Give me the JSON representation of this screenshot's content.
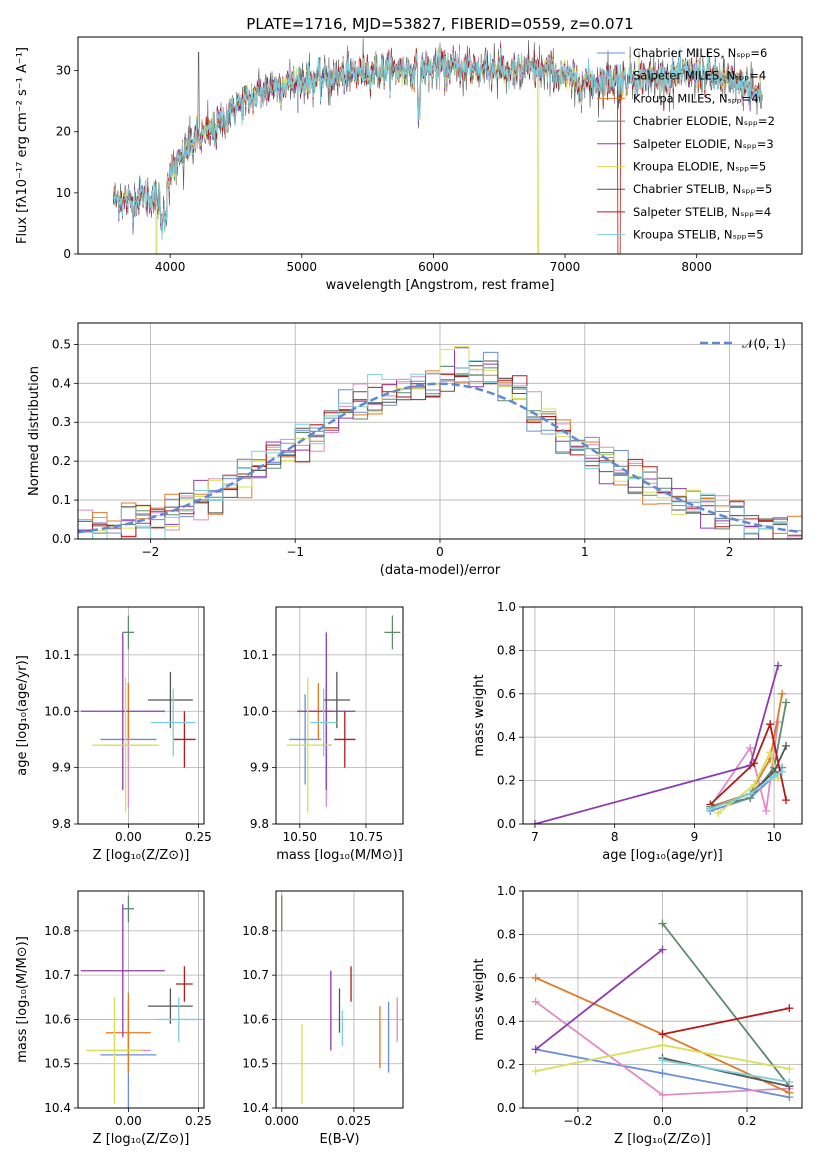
{
  "figure_title": "PLATE=1716, MJD=53827, FIBERID=0559, z=0.071",
  "colors": [
    "#6a8fd8",
    "#e08bc6",
    "#e07a24",
    "#5d8a6b",
    "#8e3bb0",
    "#d6e05a",
    "#555555",
    "#b01c1c",
    "#7ccfdc"
  ],
  "chart_data": [
    {
      "id": "spectrum",
      "type": "line",
      "xlabel": "wavelength [Angstrom, rest frame]",
      "ylabel": "Flux [fλ10⁻¹⁷ erg cm⁻² s⁻¹ A⁻¹]",
      "xlim": [
        3300,
        8800
      ],
      "ylim": [
        0,
        35.5
      ],
      "xticks": [
        4000,
        5000,
        6000,
        7000,
        8000
      ],
      "yticks": [
        0,
        10,
        20,
        30
      ],
      "legend_position": "top-right",
      "legend": [
        "Chabrier MILES, Nₛₚₚ=6",
        "Salpeter MILES, Nₛₚₚ=4",
        "Kroupa MILES, Nₛₚₚ=4",
        "Chabrier ELODIE, Nₛₚₚ=2",
        "Salpeter ELODIE, Nₛₚₚ=3",
        "Kroupa ELODIE, Nₛₚₚ=5",
        "Chabrier STELIB, Nₛₚₚ=5",
        "Salpeter STELIB, Nₛₚₚ=4",
        "Kroupa STELIB, Nₛₚₚ=5"
      ],
      "continuum": {
        "x": [
          3570,
          3700,
          3800,
          3930,
          4000,
          4100,
          4200,
          4300,
          4400,
          4500,
          4700,
          4900,
          5100,
          5300,
          5500,
          5800,
          6000,
          6300,
          6600,
          6900,
          7100,
          7400,
          7600,
          7800,
          8000,
          8200,
          8400,
          8500
        ],
        "y": [
          9,
          8.5,
          9.5,
          9,
          13,
          16,
          19,
          20,
          22,
          24,
          26.5,
          28,
          28.5,
          29,
          30,
          30,
          30.5,
          30.5,
          30,
          30,
          28,
          28.5,
          29,
          29,
          29.5,
          28.5,
          27,
          26
        ]
      }
    },
    {
      "id": "residuals",
      "type": "histogram",
      "xlabel": "(data-model)/error",
      "ylabel": "Normed distribution",
      "xlim": [
        -2.5,
        2.5
      ],
      "ylim": [
        0,
        0.555
      ],
      "xticks": [
        -2,
        -1,
        0,
        1,
        2
      ],
      "yticks": [
        0.0,
        0.1,
        0.2,
        0.3,
        0.4,
        0.5
      ],
      "legend_position": "top-right",
      "legend": [
        "𝒩(0, 1)"
      ],
      "gaussian": {
        "mean": 0,
        "sigma": 1
      }
    },
    {
      "id": "age-vs-Z",
      "type": "scatter",
      "xlabel": "Z [log₁₀(Z/Z⊙)]",
      "ylabel": "age  [log₁₀(age/yr)]",
      "xlim": [
        -0.18,
        0.27
      ],
      "ylim": [
        9.8,
        10.185
      ],
      "xticks": [
        0.0,
        0.25
      ],
      "yticks": [
        9.8,
        9.9,
        10.0,
        10.1
      ],
      "points": [
        {
          "x": 0.0,
          "y": 9.95,
          "xerr": 0.1,
          "yerr": 0.04
        },
        {
          "x": 0.0,
          "y": 9.94,
          "xerr": 0.08,
          "yerr": 0.11
        },
        {
          "x": 0.0,
          "y": 10.0,
          "xerr": 0.0,
          "yerr": 0.05
        },
        {
          "x": 0.0,
          "y": 10.14,
          "xerr": 0.02,
          "yerr": 0.03
        },
        {
          "x": -0.02,
          "y": 10.0,
          "xerr": 0.15,
          "yerr": 0.14
        },
        {
          "x": -0.01,
          "y": 9.94,
          "xerr": 0.12,
          "yerr": 0.12
        },
        {
          "x": 0.15,
          "y": 10.02,
          "xerr": 0.08,
          "yerr": 0.05
        },
        {
          "x": 0.2,
          "y": 9.95,
          "xerr": 0.04,
          "yerr": 0.05
        },
        {
          "x": 0.16,
          "y": 9.98,
          "xerr": 0.08,
          "yerr": 0.06
        }
      ]
    },
    {
      "id": "age-vs-mass",
      "type": "scatter",
      "xlabel": "mass [log₁₀(M/M⊙)]",
      "ylabel": "",
      "xlim": [
        10.41,
        10.89
      ],
      "ylim": [
        9.8,
        10.185
      ],
      "xticks": [
        10.5,
        10.75
      ],
      "yticks": [
        9.8,
        9.9,
        10.0,
        10.1
      ],
      "points": [
        {
          "x": 10.52,
          "y": 9.95,
          "xerr": 0.06,
          "yerr": 0.08
        },
        {
          "x": 10.6,
          "y": 9.94,
          "xerr": 0.02,
          "yerr": 0.11
        },
        {
          "x": 10.57,
          "y": 10.0,
          "xerr": 0.05,
          "yerr": 0.05
        },
        {
          "x": 10.85,
          "y": 10.14,
          "xerr": 0.03,
          "yerr": 0.03
        },
        {
          "x": 10.6,
          "y": 10.0,
          "xerr": 0.11,
          "yerr": 0.14
        },
        {
          "x": 10.53,
          "y": 9.94,
          "xerr": 0.08,
          "yerr": 0.12
        },
        {
          "x": 10.64,
          "y": 10.02,
          "xerr": 0.05,
          "yerr": 0.05
        },
        {
          "x": 10.67,
          "y": 9.95,
          "xerr": 0.04,
          "yerr": 0.05
        },
        {
          "x": 10.59,
          "y": 9.98,
          "xerr": 0.05,
          "yerr": 0.06
        }
      ]
    },
    {
      "id": "massweight-vs-age",
      "type": "line",
      "xlabel": "age  [log₁₀(age/yr)]",
      "ylabel": "mass weight",
      "xlim": [
        6.85,
        10.35
      ],
      "ylim": [
        0,
        1.0
      ],
      "xticks": [
        7,
        8,
        9,
        10
      ],
      "yticks": [
        0.0,
        0.2,
        0.4,
        0.6,
        0.8,
        1.0
      ],
      "series": [
        {
          "x": [
            9.2,
            9.7,
            10.0,
            10.1
          ],
          "y": [
            0.06,
            0.12,
            0.22,
            0.26
          ]
        },
        {
          "x": [
            9.2,
            9.7,
            9.9,
            10.05
          ],
          "y": [
            0.08,
            0.35,
            0.06,
            0.47
          ]
        },
        {
          "x": [
            9.2,
            9.7,
            9.95,
            10.1
          ],
          "y": [
            0.08,
            0.14,
            0.3,
            0.6
          ]
        },
        {
          "x": [
            9.2,
            9.7,
            10.0,
            10.15
          ],
          "y": [
            0.08,
            0.12,
            0.26,
            0.56
          ]
        },
        {
          "x": [
            7.0,
            9.7,
            10.05
          ],
          "y": [
            0.0,
            0.27,
            0.73
          ]
        },
        {
          "x": [
            9.3,
            9.75,
            9.95,
            10.05
          ],
          "y": [
            0.05,
            0.18,
            0.33,
            0.21
          ]
        },
        {
          "x": [
            9.2,
            9.7,
            10.0,
            10.15
          ],
          "y": [
            0.07,
            0.14,
            0.24,
            0.36
          ]
        },
        {
          "x": [
            9.2,
            9.75,
            9.95,
            10.15
          ],
          "y": [
            0.09,
            0.28,
            0.46,
            0.11
          ]
        },
        {
          "x": [
            9.2,
            9.7,
            10.0,
            10.1
          ],
          "y": [
            0.07,
            0.14,
            0.22,
            0.24
          ]
        }
      ]
    },
    {
      "id": "mass-vs-Z",
      "type": "scatter",
      "xlabel": "Z [log₁₀(Z/Z⊙)]",
      "ylabel": "mass [log₁₀(M/M⊙)]",
      "xlim": [
        -0.18,
        0.27
      ],
      "ylim": [
        10.4,
        10.89
      ],
      "xticks": [
        0.0,
        0.25
      ],
      "yticks": [
        10.4,
        10.5,
        10.6,
        10.7,
        10.8
      ],
      "points": [
        {
          "x": 0.0,
          "y": 10.52,
          "xerr": 0.1,
          "yerr": 0.12
        },
        {
          "x": 0.0,
          "y": 10.53,
          "xerr": 0.08,
          "yerr": 0.05
        },
        {
          "x": 0.0,
          "y": 10.57,
          "xerr": 0.08,
          "yerr": 0.09
        },
        {
          "x": 0.0,
          "y": 10.85,
          "xerr": 0.02,
          "yerr": 0.03
        },
        {
          "x": -0.02,
          "y": 10.71,
          "xerr": 0.15,
          "yerr": 0.15
        },
        {
          "x": -0.05,
          "y": 10.53,
          "xerr": 0.1,
          "yerr": 0.12
        },
        {
          "x": 0.15,
          "y": 10.63,
          "xerr": 0.08,
          "yerr": 0.04
        },
        {
          "x": 0.2,
          "y": 10.68,
          "xerr": 0.03,
          "yerr": 0.04
        },
        {
          "x": 0.18,
          "y": 10.6,
          "xerr": 0.08,
          "yerr": 0.05
        }
      ]
    },
    {
      "id": "mass-vs-EBV",
      "type": "scatter",
      "xlabel": "E(B-V)",
      "ylabel": "",
      "xlim": [
        -0.002,
        0.042
      ],
      "ylim": [
        10.4,
        10.89
      ],
      "xticks": [
        0.0,
        0.025
      ],
      "yticks": [
        10.4,
        10.5,
        10.6,
        10.7,
        10.8
      ],
      "points": [
        {
          "x": 0.037,
          "y": 10.56,
          "xerr": 0,
          "yerr": 0.08
        },
        {
          "x": 0.04,
          "y": 10.6,
          "xerr": 0,
          "yerr": 0.05
        },
        {
          "x": 0.034,
          "y": 10.56,
          "xerr": 0,
          "yerr": 0.07
        },
        {
          "x": 0.0,
          "y": 10.84,
          "xerr": 0,
          "yerr": 0.04
        },
        {
          "x": 0.017,
          "y": 10.62,
          "xerr": 0,
          "yerr": 0.09
        },
        {
          "x": 0.007,
          "y": 10.5,
          "xerr": 0,
          "yerr": 0.09
        },
        {
          "x": 0.02,
          "y": 10.62,
          "xerr": 0,
          "yerr": 0.05
        },
        {
          "x": 0.024,
          "y": 10.68,
          "xerr": 0,
          "yerr": 0.04
        },
        {
          "x": 0.021,
          "y": 10.58,
          "xerr": 0,
          "yerr": 0.04
        }
      ]
    },
    {
      "id": "massweight-vs-Z",
      "type": "line",
      "xlabel": "Z [log₁₀(Z/Z⊙)]",
      "ylabel": "mass weight",
      "xlim": [
        -0.33,
        0.33
      ],
      "ylim": [
        0,
        1.0
      ],
      "xticks": [
        -0.2,
        0.0,
        0.2
      ],
      "yticks": [
        0.0,
        0.2,
        0.4,
        0.6,
        0.8,
        1.0
      ],
      "series": [
        {
          "x": [
            -0.3,
            0.0,
            0.3
          ],
          "y": [
            0.27,
            0.16,
            0.05
          ]
        },
        {
          "x": [
            -0.3,
            0.0,
            0.3
          ],
          "y": [
            0.49,
            0.06,
            0.09
          ]
        },
        {
          "x": [
            -0.3,
            0.0,
            0.3
          ],
          "y": [
            0.6,
            0.34,
            0.07
          ]
        },
        {
          "x": [
            0.0,
            0.3
          ],
          "y": [
            0.85,
            0.1
          ]
        },
        {
          "x": [
            -0.3,
            0.0
          ],
          "y": [
            0.27,
            0.73
          ]
        },
        {
          "x": [
            -0.3,
            0.0,
            0.3
          ],
          "y": [
            0.17,
            0.29,
            0.18
          ]
        },
        {
          "x": [
            0.0,
            0.3
          ],
          "y": [
            0.23,
            0.1
          ]
        },
        {
          "x": [
            0.0,
            0.3
          ],
          "y": [
            0.34,
            0.46
          ]
        },
        {
          "x": [
            0.0,
            0.3
          ],
          "y": [
            0.22,
            0.12
          ]
        }
      ]
    }
  ]
}
